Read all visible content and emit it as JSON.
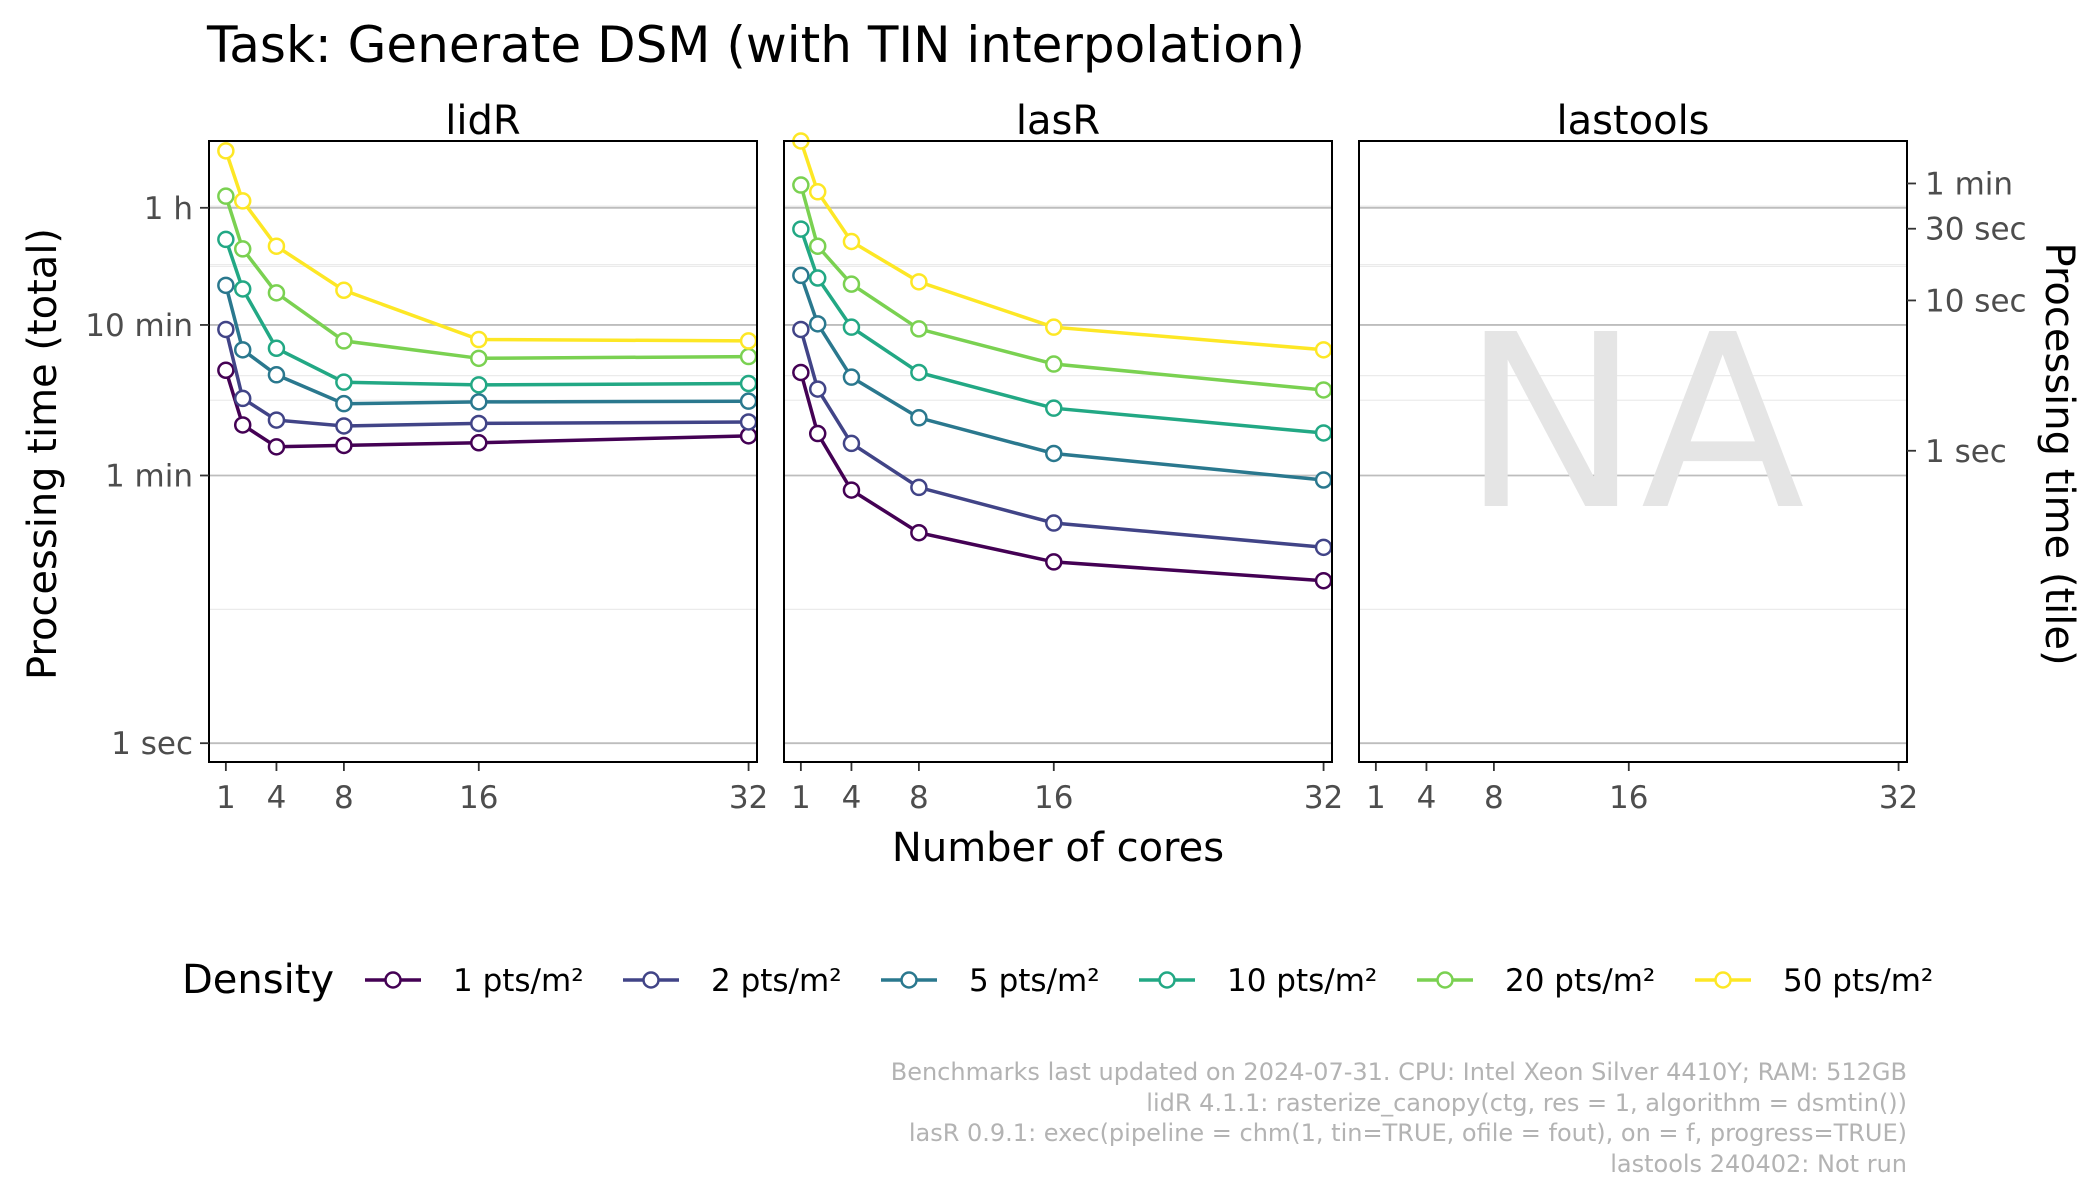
{
  "chart_data": {
    "type": "line",
    "title": "Task: Generate DSM (with TIN interpolation)",
    "xlabel": "Number of cores",
    "ylabel_left": "Processing time (total)",
    "ylabel_right": "Processing time (tile)",
    "scale": "log",
    "x_ticks": [
      1,
      4,
      8,
      16,
      32
    ],
    "xlim": [
      0,
      32.5
    ],
    "y_ticks_left": [
      {
        "seconds": 1,
        "label": "1 sec"
      },
      {
        "seconds": 60,
        "label": "1 min"
      },
      {
        "seconds": 600,
        "label": "10 min"
      },
      {
        "seconds": 3600,
        "label": "1 h"
      }
    ],
    "y_ticks_right": [
      {
        "seconds": 1,
        "label": "1 sec"
      },
      {
        "seconds": 10,
        "label": "10 sec"
      },
      {
        "seconds": 30,
        "label": "30 sec"
      },
      {
        "seconds": 60,
        "label": "1 min"
      }
    ],
    "ylim_seconds_left": [
      0.75,
      10000
    ],
    "ylim_seconds_right": [
      0.0085,
      115
    ],
    "grid": true,
    "legend": {
      "title": "Density",
      "position": "bottom"
    },
    "colors": [
      "#440154",
      "#414487",
      "#2a788e",
      "#22a884",
      "#7ad151",
      "#fde725"
    ],
    "series_names": [
      "1 pts/m²",
      "2 pts/m²",
      "5 pts/m²",
      "10 pts/m²",
      "20 pts/m²",
      "50 pts/m²"
    ],
    "x": [
      1,
      2,
      4,
      8,
      16,
      32
    ],
    "facets": [
      {
        "name": "lidR",
        "values": [
          [
            300,
            130,
            93,
            95,
            99,
            110
          ],
          [
            560,
            195,
            140,
            128,
            133,
            136
          ],
          [
            1100,
            410,
            280,
            180,
            185,
            187
          ],
          [
            2220,
            1040,
            420,
            250,
            240,
            245
          ],
          [
            4300,
            1920,
            980,
            470,
            360,
            370
          ],
          [
            8600,
            4000,
            2000,
            1020,
            480,
            470
          ]
        ]
      },
      {
        "name": "lasR",
        "values": [
          [
            290,
            114,
            48,
            25,
            16,
            12
          ],
          [
            560,
            225,
            98,
            50,
            29,
            20
          ],
          [
            1280,
            610,
            270,
            145,
            84,
            56
          ],
          [
            2600,
            1230,
            580,
            290,
            168,
            115
          ],
          [
            5100,
            2000,
            1120,
            565,
            330,
            222
          ],
          [
            10000,
            4600,
            2150,
            1160,
            580,
            410
          ]
        ]
      },
      {
        "name": "lastools",
        "values": [],
        "na_label": "NA"
      }
    ],
    "caption": [
      "Benchmarks last updated on 2024-07-31. CPU: Intel Xeon Silver 4410Y; RAM: 512GB",
      "lidR 4.1.1: rasterize_canopy(ctg, res = 1, algorithm = dsmtin())",
      "lasR 0.9.1: exec(pipeline = chm(1, tin=TRUE, ofile = fout), on = f, progress=TRUE)",
      "lastools 240402: Not run"
    ]
  }
}
